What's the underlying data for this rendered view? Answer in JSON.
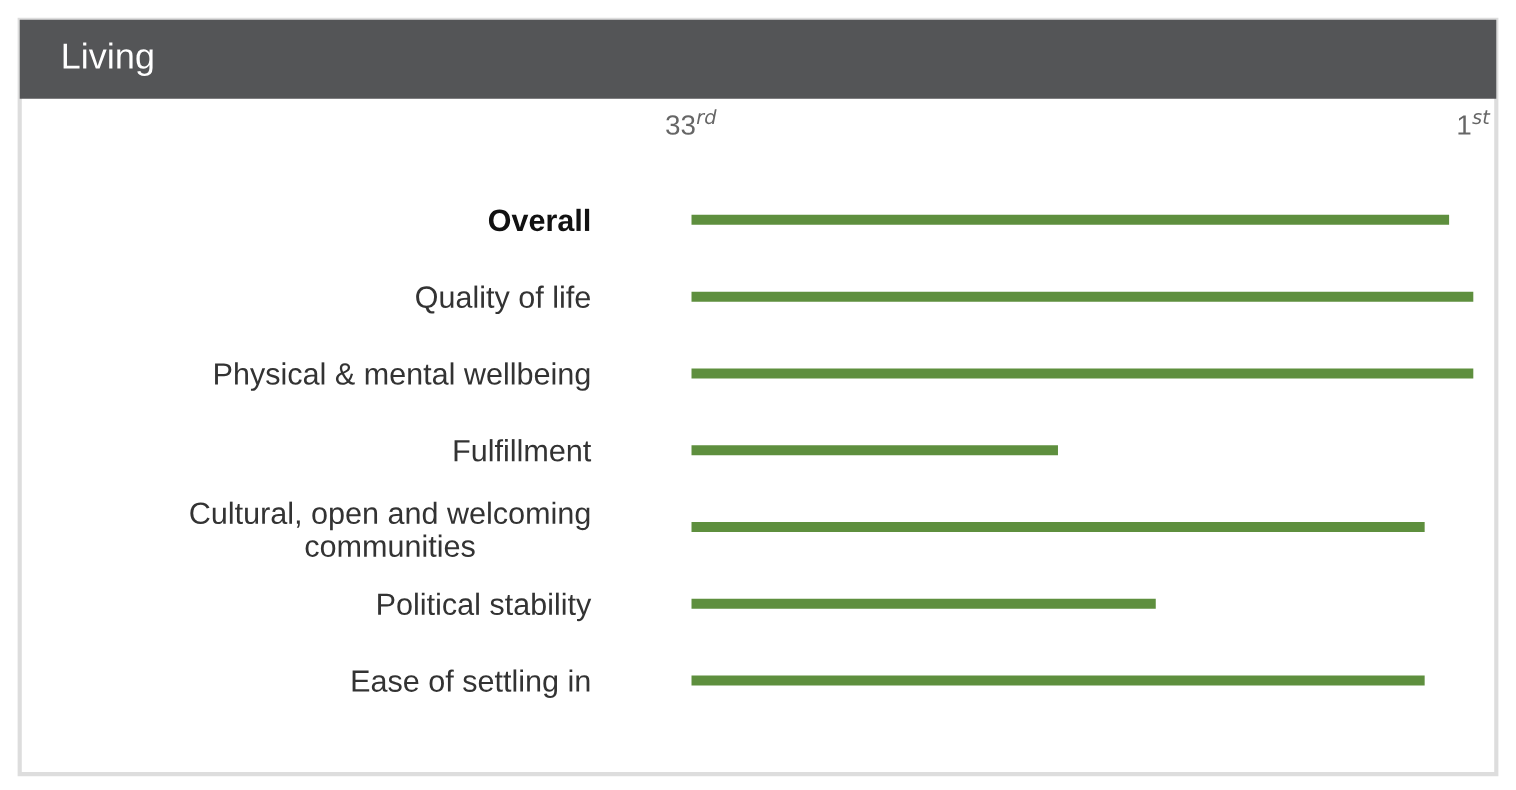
{
  "chart_data": {
    "type": "bar",
    "orientation": "horizontal",
    "title": "Living",
    "categories": [
      "Overall",
      "Quality of life",
      "Physical & mental wellbeing",
      "Fulfillment",
      "Cultural, open and welcoming\ncommunities",
      "Political stability",
      "Ease of settling in"
    ],
    "values": [
      -31,
      -32,
      -32,
      -15,
      -30,
      -19,
      -30
    ],
    "base": [
      33,
      33,
      33,
      33,
      33,
      33,
      33
    ],
    "color": "#5e8f3e",
    "xlim": [
      33,
      1
    ],
    "xticks": [
      {
        "value": 33,
        "label": "33$^{rd}$"
      },
      {
        "value": 1,
        "label": "1$^{st}$"
      }
    ],
    "grid": false,
    "legend": false
  }
}
